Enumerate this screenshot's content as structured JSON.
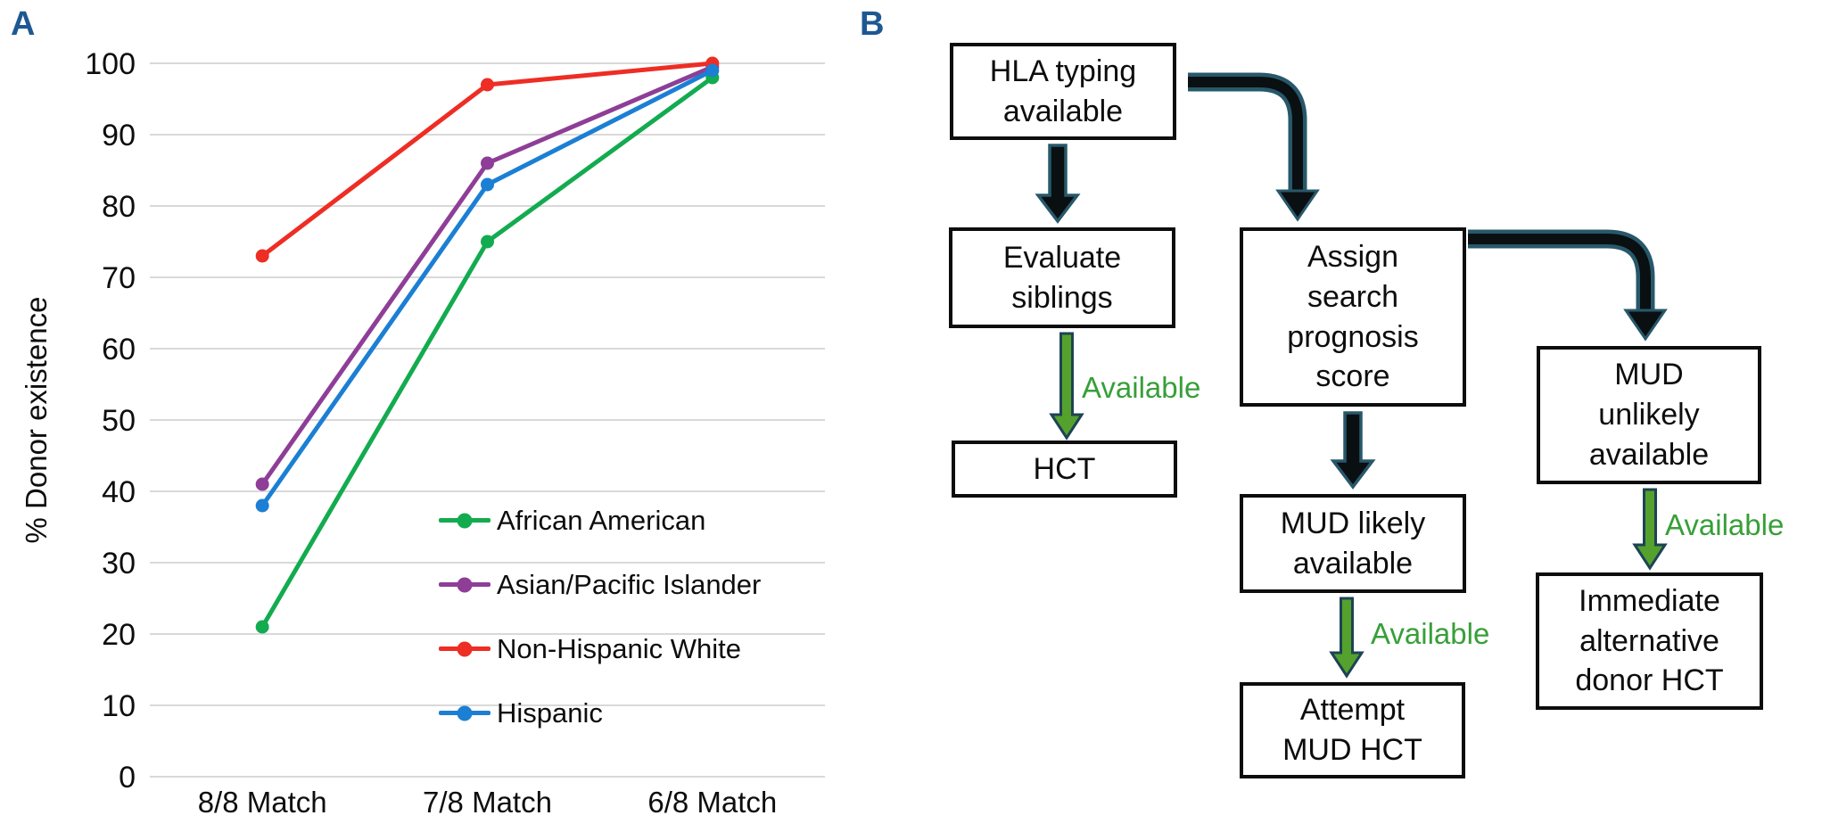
{
  "figure": {
    "panel_a_label": "A",
    "panel_b_label": "B"
  },
  "chart_data": {
    "type": "line",
    "categories": [
      "8/8 Match",
      "7/8 Match",
      "6/8 Match"
    ],
    "series": [
      {
        "name": "African American",
        "color": "#13ab4f",
        "values": [
          21,
          75,
          98
        ]
      },
      {
        "name": "Asian/Pacific Islander",
        "color": "#8e3e97",
        "values": [
          41,
          86,
          99.5
        ]
      },
      {
        "name": "Non-Hispanic White",
        "color": "#ee2d24",
        "values": [
          73,
          97,
          100
        ]
      },
      {
        "name": "Hispanic",
        "color": "#1b7fd4",
        "values": [
          38,
          83,
          99
        ]
      }
    ],
    "title": "",
    "xlabel": "",
    "ylabel": "% Donor existence",
    "ylim": [
      0,
      100
    ],
    "ytick_step": 10,
    "grid": true,
    "gridline_color": "#d9d9d9",
    "legend_position": "inside-right"
  },
  "flowchart": {
    "nodes": {
      "hla": {
        "label": "HLA typing\navailable"
      },
      "evaluate": {
        "label": "Evaluate\nsiblings"
      },
      "hct": {
        "label": "HCT"
      },
      "assign": {
        "label": "Assign\nsearch\nprognosis\nscore"
      },
      "mud_likely": {
        "label": "MUD likely\navailable"
      },
      "attempt": {
        "label": "Attempt\nMUD HCT"
      },
      "mud_unlikely": {
        "label": "MUD\nunlikely\navailable"
      },
      "immediate": {
        "label": "Immediate\nalternative\ndonor HCT"
      }
    },
    "edge_labels": {
      "sibling_available": "Available",
      "mud_available": "Available",
      "alternative_available": "Available"
    },
    "colors": {
      "arrow_dark": "#0a0f12",
      "arrow_outline": "#27586a",
      "arrow_green": "#55a12d",
      "edge_label_green": "#379f38"
    }
  }
}
